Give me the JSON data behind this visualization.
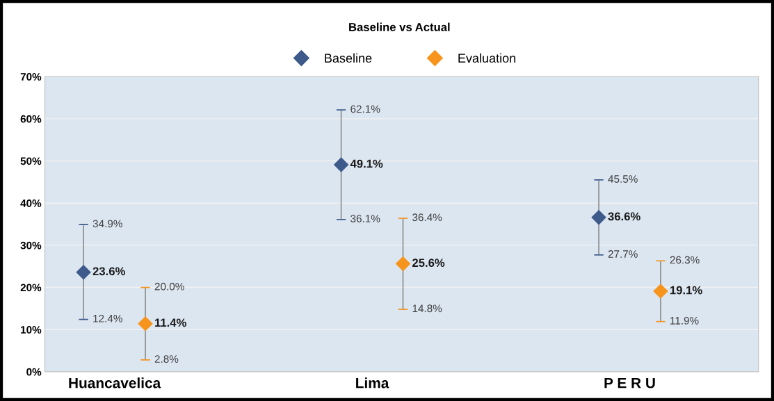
{
  "chart_data": {
    "type": "scatter",
    "title": "Baseline vs Actual",
    "categories": [
      "Huancavelica",
      "Lima",
      "P E R U"
    ],
    "series": [
      {
        "name": "Baseline",
        "color": "#3d5a8a",
        "values": [
          23.6,
          49.1,
          36.6
        ],
        "errors": [
          [
            12.4,
            34.9
          ],
          [
            36.1,
            62.1
          ],
          [
            27.7,
            45.5
          ]
        ],
        "value_labels": [
          "23.6%",
          "49.1%",
          "36.6%"
        ]
      },
      {
        "name": "Evaluation",
        "color": "#f7941d",
        "values": [
          11.4,
          25.6,
          19.1
        ],
        "errors": [
          [
            2.8,
            20.0
          ],
          [
            14.8,
            36.4
          ],
          [
            11.9,
            26.3
          ]
        ],
        "value_labels": [
          "11.4%",
          "25.6%",
          "19.1%"
        ]
      }
    ],
    "annotations": [
      "34.9%",
      "12.4%",
      "20.0%",
      "2.8%",
      "62.1%",
      "36.1%",
      "36.4%",
      "14.8%",
      "45.5%",
      "27.7%",
      "26.3%",
      "11.9%"
    ],
    "ylim": [
      0,
      70
    ],
    "yticks": [
      {
        "value": 0,
        "label": "0%"
      },
      {
        "value": 10,
        "label": "10%"
      },
      {
        "value": 20,
        "label": "20%"
      },
      {
        "value": 30,
        "label": "30%"
      },
      {
        "value": 40,
        "label": "40%"
      },
      {
        "value": 50,
        "label": "50%"
      },
      {
        "value": 60,
        "label": "60%"
      },
      {
        "value": 70,
        "label": "70%"
      }
    ],
    "marker": "diamond",
    "grid": "y",
    "legend": "top"
  }
}
